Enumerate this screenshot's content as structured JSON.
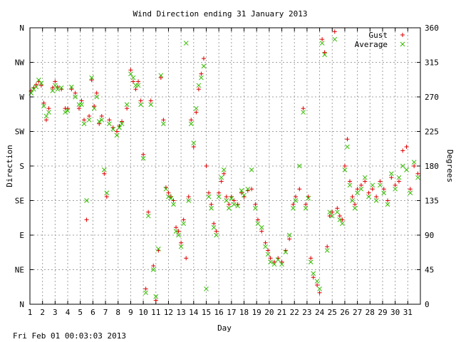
{
  "chart_data": {
    "type": "scatter",
    "title": "Wind Direction ending 31 January 2013",
    "xlabel": "Day",
    "ylabel_left": "Direction",
    "ylabel_right": "Degrees",
    "footer": "Fri Feb 01 00:03:03 2013",
    "xlim": [
      1,
      32
    ],
    "ylim": [
      0,
      360
    ],
    "grid": true,
    "legend_position": "top-right",
    "x_ticks": [
      "1",
      "2",
      "3",
      "4",
      "5",
      "6",
      "7",
      "8",
      "9",
      "10",
      "11",
      "12",
      "13",
      "14",
      "15",
      "16",
      "17",
      "18",
      "19",
      "20",
      "21",
      "22",
      "23",
      "24",
      "25",
      "26",
      "27",
      "28",
      "29",
      "30",
      "31"
    ],
    "y_ticks_left": [
      {
        "value": 0,
        "label": "N"
      },
      {
        "value": 45,
        "label": "NE"
      },
      {
        "value": 90,
        "label": "E"
      },
      {
        "value": 135,
        "label": "SE"
      },
      {
        "value": 180,
        "label": "S"
      },
      {
        "value": 225,
        "label": "SW"
      },
      {
        "value": 270,
        "label": "W"
      },
      {
        "value": 315,
        "label": "NW"
      },
      {
        "value": 360,
        "label": "N"
      }
    ],
    "y_ticks_right": [
      0,
      45,
      90,
      135,
      180,
      225,
      270,
      315,
      360
    ],
    "series": [
      {
        "name": "Gust",
        "marker": "+",
        "color": "#dd0000",
        "points": [
          [
            1.1,
            278
          ],
          [
            1.3,
            282
          ],
          [
            1.5,
            286
          ],
          [
            1.7,
            290
          ],
          [
            1.9,
            285
          ],
          [
            2.1,
            262
          ],
          [
            2.3,
            240
          ],
          [
            2.5,
            255
          ],
          [
            2.8,
            282
          ],
          [
            3.0,
            290
          ],
          [
            3.2,
            283
          ],
          [
            3.5,
            280
          ],
          [
            3.8,
            255
          ],
          [
            4.0,
            255
          ],
          [
            4.3,
            280
          ],
          [
            4.6,
            275
          ],
          [
            4.9,
            255
          ],
          [
            5.1,
            265
          ],
          [
            5.3,
            240
          ],
          [
            5.5,
            110
          ],
          [
            5.7,
            245
          ],
          [
            5.9,
            292
          ],
          [
            6.1,
            258
          ],
          [
            6.3,
            275
          ],
          [
            6.5,
            235
          ],
          [
            6.7,
            245
          ],
          [
            6.9,
            170
          ],
          [
            7.1,
            140
          ],
          [
            7.3,
            240
          ],
          [
            7.6,
            230
          ],
          [
            7.9,
            225
          ],
          [
            8.1,
            232
          ],
          [
            8.3,
            238
          ],
          [
            8.7,
            255
          ],
          [
            9.0,
            305
          ],
          [
            9.2,
            290
          ],
          [
            9.4,
            280
          ],
          [
            9.6,
            290
          ],
          [
            9.8,
            265
          ],
          [
            10.0,
            195
          ],
          [
            10.2,
            20
          ],
          [
            10.4,
            120
          ],
          [
            10.6,
            265
          ],
          [
            10.8,
            50
          ],
          [
            11.0,
            5
          ],
          [
            11.2,
            70
          ],
          [
            11.4,
            295
          ],
          [
            11.6,
            240
          ],
          [
            11.8,
            152
          ],
          [
            12.0,
            145
          ],
          [
            12.2,
            140
          ],
          [
            12.4,
            135
          ],
          [
            12.6,
            100
          ],
          [
            12.8,
            95
          ],
          [
            13.0,
            80
          ],
          [
            13.2,
            110
          ],
          [
            13.4,
            60
          ],
          [
            13.6,
            140
          ],
          [
            13.8,
            240
          ],
          [
            14.0,
            205
          ],
          [
            14.2,
            250
          ],
          [
            14.4,
            280
          ],
          [
            14.6,
            300
          ],
          [
            14.8,
            320
          ],
          [
            15.0,
            180
          ],
          [
            15.2,
            145
          ],
          [
            15.4,
            130
          ],
          [
            15.6,
            105
          ],
          [
            15.8,
            95
          ],
          [
            16.0,
            145
          ],
          [
            16.2,
            160
          ],
          [
            16.4,
            170
          ],
          [
            16.6,
            140
          ],
          [
            16.8,
            130
          ],
          [
            17.0,
            140
          ],
          [
            17.2,
            135
          ],
          [
            17.5,
            130
          ],
          [
            17.8,
            145
          ],
          [
            18.0,
            140
          ],
          [
            18.3,
            148
          ],
          [
            18.6,
            150
          ],
          [
            18.9,
            130
          ],
          [
            19.1,
            110
          ],
          [
            19.4,
            95
          ],
          [
            19.7,
            80
          ],
          [
            19.9,
            70
          ],
          [
            20.1,
            60
          ],
          [
            20.4,
            55
          ],
          [
            20.7,
            60
          ],
          [
            21.0,
            55
          ],
          [
            21.3,
            70
          ],
          [
            21.6,
            85
          ],
          [
            21.9,
            130
          ],
          [
            22.1,
            140
          ],
          [
            22.4,
            150
          ],
          [
            22.7,
            255
          ],
          [
            22.9,
            130
          ],
          [
            23.1,
            140
          ],
          [
            23.3,
            60
          ],
          [
            23.5,
            35
          ],
          [
            23.8,
            25
          ],
          [
            24.0,
            15
          ],
          [
            24.2,
            345
          ],
          [
            24.4,
            328
          ],
          [
            24.6,
            75
          ],
          [
            24.8,
            115
          ],
          [
            25.0,
            120
          ],
          [
            25.2,
            355
          ],
          [
            25.4,
            125
          ],
          [
            25.6,
            115
          ],
          [
            25.8,
            110
          ],
          [
            26.0,
            180
          ],
          [
            26.2,
            215
          ],
          [
            26.4,
            160
          ],
          [
            26.6,
            140
          ],
          [
            26.8,
            130
          ],
          [
            27.0,
            150
          ],
          [
            27.3,
            155
          ],
          [
            27.6,
            160
          ],
          [
            27.9,
            145
          ],
          [
            28.2,
            150
          ],
          [
            28.5,
            140
          ],
          [
            28.8,
            160
          ],
          [
            29.1,
            150
          ],
          [
            29.4,
            135
          ],
          [
            29.7,
            165
          ],
          [
            30.0,
            155
          ],
          [
            30.3,
            160
          ],
          [
            30.6,
            200
          ],
          [
            30.9,
            205
          ],
          [
            31.2,
            150
          ],
          [
            31.5,
            180
          ],
          [
            31.8,
            170
          ]
        ]
      },
      {
        "name": "Average",
        "marker": "x",
        "color": "#33bb00",
        "points": [
          [
            1.1,
            275
          ],
          [
            1.3,
            280
          ],
          [
            1.5,
            283
          ],
          [
            1.7,
            292
          ],
          [
            1.9,
            288
          ],
          [
            2.1,
            258
          ],
          [
            2.3,
            245
          ],
          [
            2.5,
            250
          ],
          [
            2.8,
            278
          ],
          [
            3.0,
            285
          ],
          [
            3.2,
            280
          ],
          [
            3.5,
            282
          ],
          [
            3.8,
            250
          ],
          [
            4.0,
            252
          ],
          [
            4.3,
            283
          ],
          [
            4.6,
            270
          ],
          [
            4.9,
            260
          ],
          [
            5.1,
            260
          ],
          [
            5.3,
            235
          ],
          [
            5.5,
            135
          ],
          [
            5.7,
            240
          ],
          [
            5.9,
            295
          ],
          [
            6.1,
            255
          ],
          [
            6.3,
            270
          ],
          [
            6.5,
            238
          ],
          [
            6.7,
            240
          ],
          [
            6.9,
            175
          ],
          [
            7.1,
            145
          ],
          [
            7.3,
            235
          ],
          [
            7.6,
            228
          ],
          [
            7.9,
            220
          ],
          [
            8.1,
            230
          ],
          [
            8.3,
            235
          ],
          [
            8.7,
            260
          ],
          [
            9.0,
            300
          ],
          [
            9.2,
            295
          ],
          [
            9.4,
            285
          ],
          [
            9.6,
            285
          ],
          [
            9.8,
            260
          ],
          [
            10.0,
            190
          ],
          [
            10.2,
            15
          ],
          [
            10.4,
            115
          ],
          [
            10.6,
            260
          ],
          [
            10.8,
            45
          ],
          [
            11.0,
            10
          ],
          [
            11.2,
            72
          ],
          [
            11.4,
            298
          ],
          [
            11.6,
            235
          ],
          [
            11.8,
            150
          ],
          [
            12.0,
            140
          ],
          [
            12.2,
            138
          ],
          [
            12.4,
            130
          ],
          [
            12.6,
            95
          ],
          [
            12.8,
            90
          ],
          [
            13.0,
            75
          ],
          [
            13.2,
            105
          ],
          [
            13.4,
            340
          ],
          [
            13.6,
            135
          ],
          [
            13.8,
            235
          ],
          [
            14.0,
            210
          ],
          [
            14.2,
            255
          ],
          [
            14.4,
            285
          ],
          [
            14.6,
            295
          ],
          [
            14.8,
            310
          ],
          [
            15.0,
            20
          ],
          [
            15.2,
            140
          ],
          [
            15.4,
            125
          ],
          [
            15.6,
            100
          ],
          [
            15.8,
            90
          ],
          [
            16.0,
            140
          ],
          [
            16.2,
            165
          ],
          [
            16.4,
            175
          ],
          [
            16.6,
            135
          ],
          [
            16.8,
            125
          ],
          [
            17.0,
            138
          ],
          [
            17.2,
            130
          ],
          [
            17.5,
            128
          ],
          [
            17.8,
            148
          ],
          [
            18.0,
            142
          ],
          [
            18.3,
            150
          ],
          [
            18.6,
            175
          ],
          [
            18.9,
            125
          ],
          [
            19.1,
            105
          ],
          [
            19.4,
            100
          ],
          [
            19.7,
            75
          ],
          [
            19.9,
            65
          ],
          [
            20.1,
            55
          ],
          [
            20.4,
            52
          ],
          [
            20.7,
            58
          ],
          [
            21.0,
            52
          ],
          [
            21.3,
            68
          ],
          [
            21.6,
            90
          ],
          [
            21.9,
            125
          ],
          [
            22.1,
            135
          ],
          [
            22.4,
            180
          ],
          [
            22.7,
            250
          ],
          [
            22.9,
            125
          ],
          [
            23.1,
            138
          ],
          [
            23.3,
            55
          ],
          [
            23.5,
            40
          ],
          [
            23.8,
            30
          ],
          [
            24.0,
            20
          ],
          [
            24.2,
            340
          ],
          [
            24.4,
            325
          ],
          [
            24.6,
            70
          ],
          [
            24.8,
            120
          ],
          [
            25.0,
            115
          ],
          [
            25.2,
            345
          ],
          [
            25.4,
            120
          ],
          [
            25.6,
            110
          ],
          [
            25.8,
            105
          ],
          [
            26.0,
            175
          ],
          [
            26.2,
            205
          ],
          [
            26.4,
            155
          ],
          [
            26.6,
            135
          ],
          [
            26.8,
            125
          ],
          [
            27.0,
            145
          ],
          [
            27.3,
            150
          ],
          [
            27.6,
            165
          ],
          [
            27.9,
            140
          ],
          [
            28.2,
            155
          ],
          [
            28.5,
            135
          ],
          [
            28.8,
            155
          ],
          [
            29.1,
            145
          ],
          [
            29.4,
            130
          ],
          [
            29.7,
            170
          ],
          [
            30.0,
            150
          ],
          [
            30.3,
            165
          ],
          [
            30.6,
            180
          ],
          [
            30.9,
            175
          ],
          [
            31.2,
            145
          ],
          [
            31.5,
            185
          ],
          [
            31.8,
            165
          ]
        ]
      }
    ]
  }
}
